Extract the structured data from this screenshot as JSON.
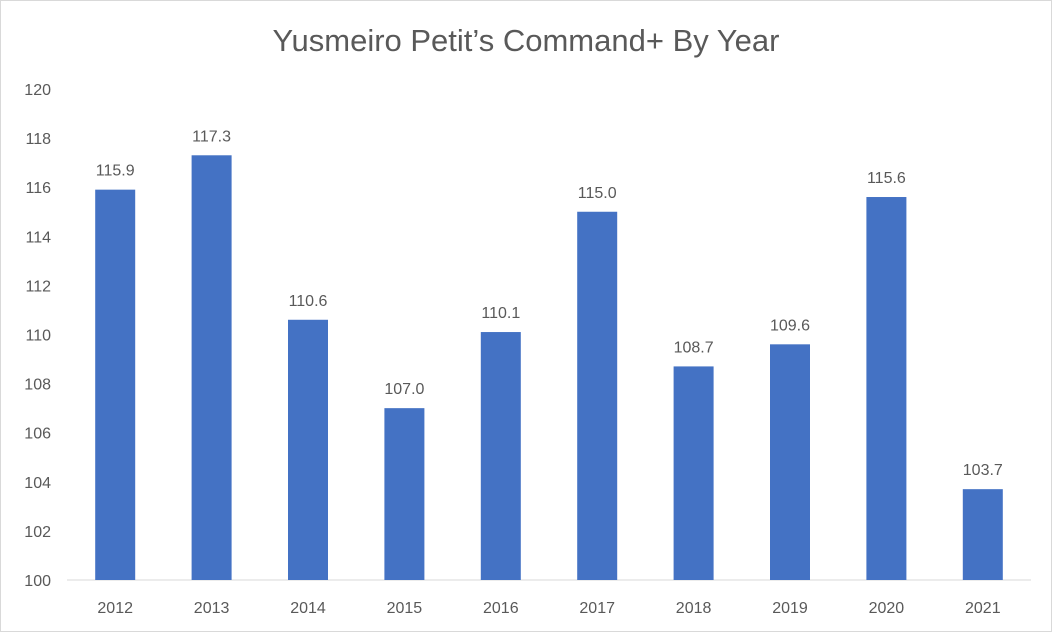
{
  "chart_data": {
    "type": "bar",
    "title": "Yusmeiro Petit’s Command+ By Year",
    "categories": [
      "2012",
      "2013",
      "2014",
      "2015",
      "2016",
      "2017",
      "2018",
      "2019",
      "2020",
      "2021"
    ],
    "values": [
      115.9,
      117.3,
      110.6,
      107.0,
      110.1,
      115.0,
      108.7,
      109.6,
      115.6,
      103.7
    ],
    "data_labels": [
      "115.9",
      "117.3",
      "110.6",
      "107.0",
      "110.1",
      "115.0",
      "108.7",
      "109.6",
      "115.6",
      "103.7"
    ],
    "yticks": [
      "100",
      "102",
      "104",
      "106",
      "108",
      "110",
      "112",
      "114",
      "116",
      "118",
      "120"
    ],
    "ylim": [
      100,
      120
    ],
    "xlabel": "",
    "ylabel": "",
    "grid": false,
    "bar_color": "#4472C4"
  }
}
